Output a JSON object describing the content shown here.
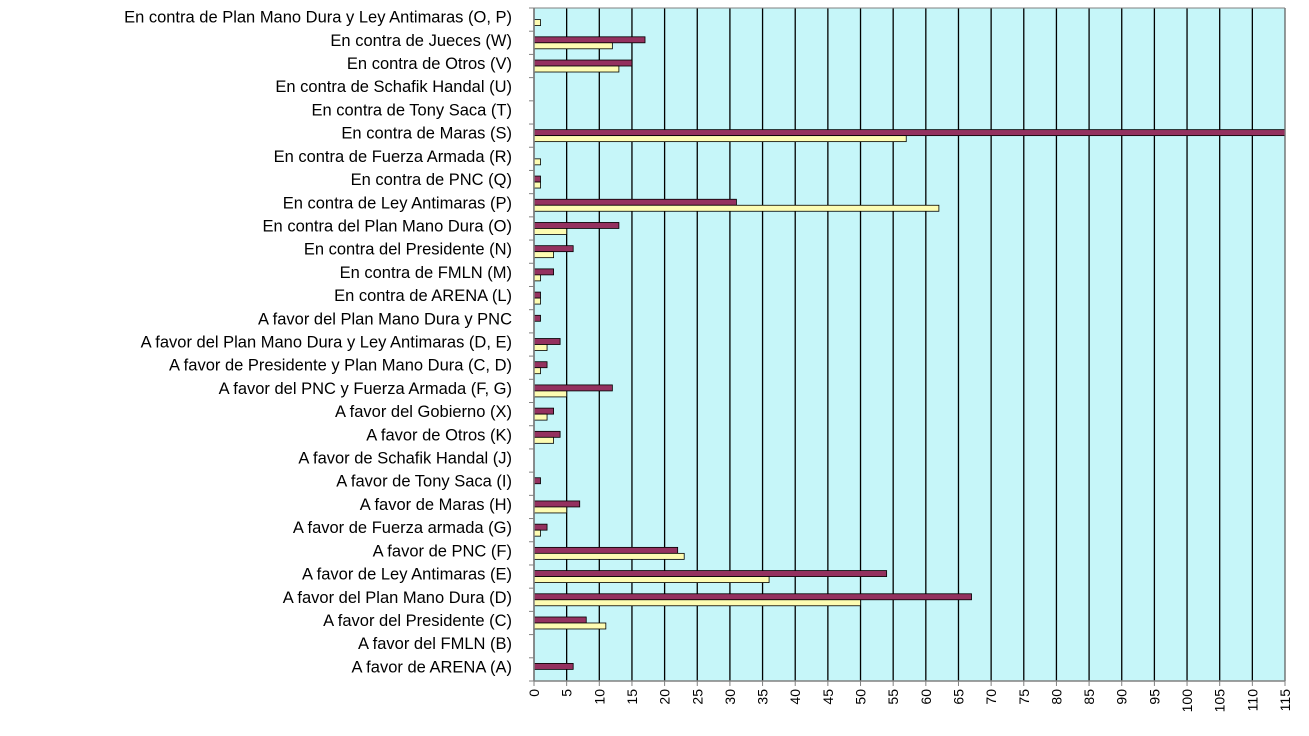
{
  "colors": {
    "plot_background": "#c6f6f9",
    "gridline": "#000000",
    "series_primary": "#94315f",
    "series_secondary": "#fdfcb2",
    "axis": "#808080",
    "text": "#000000"
  },
  "chart_data": {
    "type": "bar",
    "orientation": "horizontal",
    "title": "",
    "xlabel": "",
    "ylabel": "",
    "xlim": [
      0,
      115
    ],
    "xticks": [
      "0",
      "5",
      "10",
      "15",
      "20",
      "25",
      "30",
      "35",
      "40",
      "45",
      "50",
      "55",
      "60",
      "65",
      "70",
      "75",
      "80",
      "85",
      "90",
      "95",
      "100",
      "105",
      "110",
      "115"
    ],
    "grid": true,
    "legend": "none",
    "categories": [
      "En contra de Plan Mano Dura y Ley Antimaras (O, P)",
      "En contra de Jueces (W)",
      "En contra de Otros (V)",
      "En contra de Schafik Handal (U)",
      "En contra de Tony Saca (T)",
      "En contra de Maras (S)",
      "En contra de Fuerza Armada (R)",
      "En contra de PNC (Q)",
      "En contra de Ley Antimaras (P)",
      "En contra del Plan Mano Dura (O)",
      "En contra del Presidente (N)",
      "En contra de FMLN (M)",
      "En contra de ARENA (L)",
      "A favor del Plan Mano Dura y PNC",
      "A favor del Plan Mano Dura y Ley Antimaras (D, E)",
      "A favor de Presidente y Plan Mano Dura (C, D)",
      "A favor del PNC y Fuerza Armada (F, G)",
      "A favor del Gobierno (X)",
      "A favor de Otros (K)",
      "A favor de Schafik Handal (J)",
      "A favor de Tony Saca (I)",
      "A favor de Maras (H)",
      "A favor de Fuerza armada (G)",
      "A favor de PNC (F)",
      "A favor de Ley Antimaras (E)",
      "A favor del Plan Mano Dura (D)",
      "A favor del Presidente (C)",
      "A favor del FMLN (B)",
      "A favor de ARENA (A)"
    ],
    "series": [
      {
        "color": "#94315f",
        "values": [
          0,
          17,
          15,
          0,
          0,
          115,
          0,
          1,
          31,
          13,
          6,
          3,
          1,
          1,
          4,
          2,
          12,
          3,
          4,
          0,
          1,
          7,
          2,
          22,
          54,
          67,
          8,
          0,
          6
        ]
      },
      {
        "color": "#fdfcb2",
        "values": [
          1,
          12,
          13,
          0,
          0,
          57,
          1,
          1,
          62,
          5,
          3,
          1,
          1,
          0,
          2,
          1,
          5,
          2,
          3,
          0,
          0,
          5,
          1,
          23,
          36,
          50,
          11,
          0,
          0
        ]
      }
    ]
  }
}
